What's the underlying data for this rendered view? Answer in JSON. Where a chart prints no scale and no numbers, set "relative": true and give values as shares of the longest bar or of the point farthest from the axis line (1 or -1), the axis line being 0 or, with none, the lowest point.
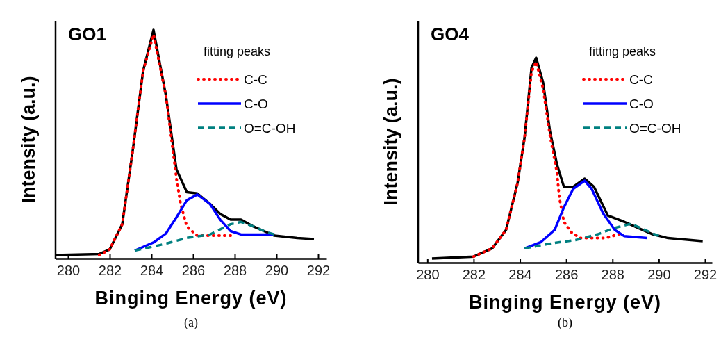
{
  "chart_data": [
    {
      "type": "line",
      "relative": true,
      "xlabel": "Binging Energy (eV)",
      "ylabel": "Intensity (a.u.)",
      "legend_title": "fitting peaks",
      "legend": "top right",
      "annotations": [
        "GO1",
        "(a)"
      ],
      "xlim": [
        279.4,
        292.4
      ],
      "xticks": [
        280,
        282,
        284,
        286,
        288,
        290,
        292
      ],
      "series": [
        {
          "color": "#000000",
          "line_style": "solid",
          "x": [
            279.4,
            281.5,
            282.0,
            282.6,
            283.1,
            283.6,
            284.1,
            284.7,
            285.2,
            285.7,
            286.2,
            286.8,
            287.3,
            287.8,
            288.3,
            288.9,
            289.4,
            289.9,
            291.0,
            291.8
          ],
          "values": [
            0.015,
            0.02,
            0.04,
            0.15,
            0.47,
            0.82,
            1.0,
            0.71,
            0.39,
            0.29,
            0.285,
            0.24,
            0.195,
            0.17,
            0.17,
            0.14,
            0.12,
            0.1,
            0.09,
            0.085
          ]
        },
        {
          "name": "C-C",
          "color": "#ff0000",
          "line_style": "dotted",
          "x": [
            281.5,
            282.0,
            282.6,
            283.1,
            283.6,
            284.1,
            284.7,
            285.2,
            285.4,
            285.7,
            286.2,
            287.3,
            287.8
          ],
          "values": [
            0.015,
            0.04,
            0.15,
            0.47,
            0.82,
            0.98,
            0.71,
            0.35,
            0.24,
            0.14,
            0.1,
            0.1,
            0.1
          ]
        },
        {
          "name": "C-O",
          "color": "#0000ff",
          "line_style": "solid",
          "x": [
            283.2,
            284.1,
            284.7,
            285.2,
            285.7,
            286.2,
            286.8,
            287.3,
            287.8,
            288.3,
            289.9
          ],
          "values": [
            0.035,
            0.07,
            0.11,
            0.18,
            0.255,
            0.28,
            0.24,
            0.17,
            0.12,
            0.105,
            0.105
          ]
        },
        {
          "name": "O=C-OH",
          "color": "#008080",
          "line_style": "dashed",
          "x": [
            283.2,
            284.7,
            285.7,
            286.8,
            287.8,
            288.3,
            288.9,
            289.4,
            289.9
          ],
          "values": [
            0.035,
            0.065,
            0.09,
            0.105,
            0.15,
            0.16,
            0.14,
            0.12,
            0.105
          ]
        }
      ]
    },
    {
      "type": "line",
      "relative": true,
      "xlabel": "Binging Energy (eV)",
      "ylabel": "Intensity (a.u.)",
      "legend_title": "fitting peaks",
      "legend": "top right",
      "annotations": [
        "GO4",
        "(b)"
      ],
      "xlim": [
        279.6,
        292.3
      ],
      "xticks": [
        280,
        282,
        284,
        286,
        288,
        290,
        292
      ],
      "series": [
        {
          "color": "#000000",
          "line_style": "solid",
          "x": [
            280.2,
            282.0,
            282.8,
            283.4,
            283.9,
            284.2,
            284.5,
            284.7,
            285.0,
            285.3,
            285.6,
            285.9,
            286.3,
            286.8,
            287.2,
            287.8,
            288.5,
            289.1,
            289.7,
            290.4,
            291.9
          ],
          "values": [
            0.02,
            0.03,
            0.07,
            0.16,
            0.39,
            0.61,
            0.95,
            1.0,
            0.88,
            0.64,
            0.48,
            0.37,
            0.37,
            0.41,
            0.37,
            0.23,
            0.2,
            0.17,
            0.14,
            0.12,
            0.105
          ]
        },
        {
          "name": "C-C",
          "color": "#ff0000",
          "line_style": "dotted",
          "x": [
            282.0,
            282.8,
            283.4,
            283.9,
            284.2,
            284.5,
            284.7,
            285.0,
            285.3,
            285.6,
            285.7,
            285.9,
            286.2,
            286.6,
            287.7,
            288.3
          ],
          "values": [
            0.03,
            0.07,
            0.16,
            0.39,
            0.61,
            0.93,
            0.98,
            0.85,
            0.62,
            0.44,
            0.32,
            0.2,
            0.15,
            0.12,
            0.12,
            0.14
          ]
        },
        {
          "name": "C-O",
          "color": "#0000ff",
          "line_style": "solid",
          "x": [
            284.2,
            284.9,
            285.5,
            285.9,
            286.3,
            286.8,
            287.1,
            287.6,
            288.1,
            288.5,
            289.5
          ],
          "values": [
            0.07,
            0.1,
            0.16,
            0.27,
            0.36,
            0.4,
            0.36,
            0.24,
            0.16,
            0.13,
            0.12
          ]
        },
        {
          "name": "O=C-OH",
          "color": "#008080",
          "line_style": "dashed",
          "x": [
            284.2,
            285.4,
            286.4,
            287.4,
            288.1,
            288.8,
            289.4,
            290.0
          ],
          "values": [
            0.07,
            0.095,
            0.11,
            0.14,
            0.17,
            0.19,
            0.16,
            0.13
          ]
        }
      ]
    }
  ]
}
